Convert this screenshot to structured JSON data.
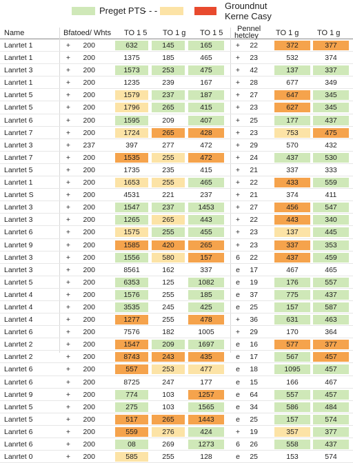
{
  "colors": {
    "green": "#cfe8b8",
    "yellow": "#fce3a6",
    "orange": "#f5a34c",
    "red": "#e84a2e",
    "white": "#ffffff"
  },
  "legend": {
    "label1": "Preget PTS",
    "dashes": "- - -",
    "label2_line1": "Groundnut",
    "label2_line2": "Kerne Casy"
  },
  "headers": {
    "name": "Name",
    "col2": "Bfatoed/ Whts",
    "col3": "TO 1 5",
    "col4": "TO 1 g",
    "col5": "TO 1 5",
    "col6_line1": "Pennel",
    "col6_line2": "hetcley",
    "col7": "TO 1 g",
    "col8": "TO 1 g"
  },
  "rows": [
    {
      "name": "Lanrtet 1",
      "a1": "+",
      "n1": "200",
      "v1": "632",
      "c1": "green",
      "v2": "145",
      "c2": "green",
      "v3": "165",
      "c3": "green",
      "a2": "+",
      "n2": "22",
      "v4": "372",
      "c4": "orange",
      "v5": "377",
      "c5": "orange"
    },
    {
      "name": "Lanrtet 1",
      "a1": "+",
      "n1": "200",
      "v1": "1375",
      "c1": "white",
      "v2": "185",
      "c2": "white",
      "v3": "465",
      "c3": "white",
      "a2": "+",
      "n2": "23",
      "v4": "532",
      "c4": "white",
      "v5": "374",
      "c5": "white"
    },
    {
      "name": "Lanrtet 3",
      "a1": "+",
      "n1": "200",
      "v1": "1573",
      "c1": "green",
      "v2": "253",
      "c2": "green",
      "v3": "475",
      "c3": "green",
      "a2": "+",
      "n2": "42",
      "v4": "137",
      "c4": "green",
      "v5": "337",
      "c5": "green"
    },
    {
      "name": "Lanrtet 1",
      "a1": "+",
      "n1": "200",
      "v1": "1235",
      "c1": "white",
      "v2": "239",
      "c2": "white",
      "v3": "167",
      "c3": "white",
      "a2": "+",
      "n2": "28",
      "v4": "677",
      "c4": "white",
      "v5": "349",
      "c5": "white"
    },
    {
      "name": "Lanrtet 5",
      "a1": "+",
      "n1": "200",
      "v1": "1579",
      "c1": "yellow",
      "v2": "237",
      "c2": "green",
      "v3": "187",
      "c3": "green",
      "a2": "+",
      "n2": "27",
      "v4": "647",
      "c4": "orange",
      "v5": "345",
      "c5": "green"
    },
    {
      "name": "Lanrtet 5",
      "a1": "+",
      "n1": "200",
      "v1": "1796",
      "c1": "yellow",
      "v2": "265",
      "c2": "green",
      "v3": "415",
      "c3": "green",
      "a2": "+",
      "n2": "23",
      "v4": "627",
      "c4": "orange",
      "v5": "345",
      "c5": "green"
    },
    {
      "name": "Lanrtet 6",
      "a1": "+",
      "n1": "200",
      "v1": "1595",
      "c1": "green",
      "v2": "209",
      "c2": "white",
      "v3": "407",
      "c3": "green",
      "a2": "+",
      "n2": "25",
      "v4": "177",
      "c4": "green",
      "v5": "437",
      "c5": "green"
    },
    {
      "name": "Lanrtet 7",
      "a1": "+",
      "n1": "200",
      "v1": "1724",
      "c1": "yellow",
      "v2": "265",
      "c2": "orange",
      "v3": "428",
      "c3": "orange",
      "a2": "+",
      "n2": "23",
      "v4": "753",
      "c4": "yellow",
      "v5": "475",
      "c5": "orange"
    },
    {
      "name": "Lanrtet 3",
      "a1": "+",
      "n1": "237",
      "v1": "397",
      "c1": "white",
      "v2": "277",
      "c2": "white",
      "v3": "472",
      "c3": "white",
      "a2": "+",
      "n2": "29",
      "v4": "570",
      "c4": "white",
      "v5": "432",
      "c5": "white"
    },
    {
      "name": "Lanrtet 7",
      "a1": "+",
      "n1": "200",
      "v1": "1535",
      "c1": "orange",
      "v2": "255",
      "c2": "yellow",
      "v3": "472",
      "c3": "orange",
      "a2": "+",
      "n2": "24",
      "v4": "437",
      "c4": "green",
      "v5": "530",
      "c5": "green"
    },
    {
      "name": "Lanrtet 5",
      "a1": "+",
      "n1": "200",
      "v1": "1735",
      "c1": "white",
      "v2": "235",
      "c2": "white",
      "v3": "415",
      "c3": "white",
      "a2": "+",
      "n2": "21",
      "v4": "337",
      "c4": "white",
      "v5": "333",
      "c5": "white"
    },
    {
      "name": "Lanrtet 1",
      "a1": "+",
      "n1": "200",
      "v1": "1653",
      "c1": "yellow",
      "v2": "255",
      "c2": "yellow",
      "v3": "465",
      "c3": "green",
      "a2": "+",
      "n2": "22",
      "v4": "433",
      "c4": "orange",
      "v5": "559",
      "c5": "green"
    },
    {
      "name": "Lanrtet S",
      "a1": "+",
      "n1": "200",
      "v1": "4531",
      "c1": "white",
      "v2": "221",
      "c2": "white",
      "v3": "237",
      "c3": "white",
      "a2": "+",
      "n2": "21",
      "v4": "374",
      "c4": "white",
      "v5": "411",
      "c5": "white"
    },
    {
      "name": "Lanrtet 3",
      "a1": "+",
      "n1": "200",
      "v1": "1547",
      "c1": "green",
      "v2": "237",
      "c2": "green",
      "v3": "1453",
      "c3": "green",
      "a2": "+",
      "n2": "27",
      "v4": "456",
      "c4": "orange",
      "v5": "547",
      "c5": "green"
    },
    {
      "name": "Lanrtet 3",
      "a1": "+",
      "n1": "200",
      "v1": "1265",
      "c1": "green",
      "v2": "265",
      "c2": "yellow",
      "v3": "443",
      "c3": "green",
      "a2": "+",
      "n2": "22",
      "v4": "443",
      "c4": "orange",
      "v5": "340",
      "c5": "green"
    },
    {
      "name": "Lanrtet 6",
      "a1": "+",
      "n1": "200",
      "v1": "1575",
      "c1": "yellow",
      "v2": "255",
      "c2": "green",
      "v3": "455",
      "c3": "green",
      "a2": "+",
      "n2": "23",
      "v4": "137",
      "c4": "yellow",
      "v5": "445",
      "c5": "green"
    },
    {
      "name": "Lanrtet 9",
      "a1": "+",
      "n1": "200",
      "v1": "1585",
      "c1": "orange",
      "v2": "420",
      "c2": "orange",
      "v3": "265",
      "c3": "orange",
      "a2": "+",
      "n2": "23",
      "v4": "337",
      "c4": "orange",
      "v5": "353",
      "c5": "green"
    },
    {
      "name": "Lanrtet 3",
      "a1": "+",
      "n1": "200",
      "v1": "1556",
      "c1": "green",
      "v2": "580",
      "c2": "yellow",
      "v3": "157",
      "c3": "orange",
      "a2": "6",
      "n2": "22",
      "v4": "437",
      "c4": "orange",
      "v5": "459",
      "c5": "green"
    },
    {
      "name": "Lanrtet 3",
      "a1": "+",
      "n1": "200",
      "v1": "8561",
      "c1": "white",
      "v2": "162",
      "c2": "white",
      "v3": "337",
      "c3": "white",
      "a2": "e",
      "n2": "17",
      "v4": "467",
      "c4": "white",
      "v5": "465",
      "c5": "white"
    },
    {
      "name": "Lanrtet 5",
      "a1": "+",
      "n1": "200",
      "v1": "6353",
      "c1": "green",
      "v2": "125",
      "c2": "white",
      "v3": "1082",
      "c3": "green",
      "a2": "e",
      "n2": "19",
      "v4": "176",
      "c4": "green",
      "v5": "557",
      "c5": "green"
    },
    {
      "name": "Lanrtet 4",
      "a1": "+",
      "n1": "200",
      "v1": "1576",
      "c1": "green",
      "v2": "255",
      "c2": "white",
      "v3": "185",
      "c3": "green",
      "a2": "e",
      "n2": "37",
      "v4": "775",
      "c4": "green",
      "v5": "437",
      "c5": "green"
    },
    {
      "name": "Lanrtet 4",
      "a1": "+",
      "n1": "200",
      "v1": "3535",
      "c1": "green",
      "v2": "245",
      "c2": "white",
      "v3": "425",
      "c3": "green",
      "a2": "e",
      "n2": "25",
      "v4": "157",
      "c4": "green",
      "v5": "587",
      "c5": "green"
    },
    {
      "name": "Lanrtet 4",
      "a1": "+",
      "n1": "200",
      "v1": "1277",
      "c1": "orange",
      "v2": "255",
      "c2": "white",
      "v3": "478",
      "c3": "orange",
      "a2": "+",
      "n2": "36",
      "v4": "631",
      "c4": "green",
      "v5": "463",
      "c5": "green"
    },
    {
      "name": "Lanrtet 6",
      "a1": "+",
      "n1": "200",
      "v1": "7576",
      "c1": "white",
      "v2": "182",
      "c2": "white",
      "v3": "1005",
      "c3": "white",
      "a2": "+",
      "n2": "29",
      "v4": "170",
      "c4": "white",
      "v5": "364",
      "c5": "white"
    },
    {
      "name": "Lanrtet 2",
      "a1": "+",
      "n1": "200",
      "v1": "1547",
      "c1": "orange",
      "v2": "209",
      "c2": "green",
      "v3": "1697",
      "c3": "green",
      "a2": "e",
      "n2": "16",
      "v4": "577",
      "c4": "orange",
      "v5": "377",
      "c5": "orange"
    },
    {
      "name": "Lanrtet 2",
      "a1": "+",
      "n1": "200",
      "v1": "8743",
      "c1": "orange",
      "v2": "243",
      "c2": "orange",
      "v3": "435",
      "c3": "orange",
      "a2": "e",
      "n2": "17",
      "v4": "567",
      "c4": "green",
      "v5": "457",
      "c5": "orange"
    },
    {
      "name": "Lanrtet 6",
      "a1": "+",
      "n1": "200",
      "v1": "557",
      "c1": "orange",
      "v2": "253",
      "c2": "yellow",
      "v3": "477",
      "c3": "yellow",
      "a2": "e",
      "n2": "18",
      "v4": "1095",
      "c4": "green",
      "v5": "457",
      "c5": "green"
    },
    {
      "name": "Lanrtet 6",
      "a1": "+",
      "n1": "200",
      "v1": "8725",
      "c1": "white",
      "v2": "247",
      "c2": "white",
      "v3": "177",
      "c3": "white",
      "a2": "e",
      "n2": "15",
      "v4": "166",
      "c4": "white",
      "v5": "467",
      "c5": "white"
    },
    {
      "name": "Lanrtet 9",
      "a1": "+",
      "n1": "200",
      "v1": "774",
      "c1": "green",
      "v2": "103",
      "c2": "white",
      "v3": "1257",
      "c3": "orange",
      "a2": "e",
      "n2": "64",
      "v4": "557",
      "c4": "green",
      "v5": "457",
      "c5": "green"
    },
    {
      "name": "Lanrtet 5",
      "a1": "+",
      "n1": "200",
      "v1": "275",
      "c1": "green",
      "v2": "103",
      "c2": "white",
      "v3": "1565",
      "c3": "green",
      "a2": "e",
      "n2": "34",
      "v4": "586",
      "c4": "green",
      "v5": "484",
      "c5": "green"
    },
    {
      "name": "Lanrtet 5",
      "a1": "+",
      "n1": "200",
      "v1": "517",
      "c1": "orange",
      "v2": "265",
      "c2": "orange",
      "v3": "1443",
      "c3": "orange",
      "a2": "e",
      "n2": "25",
      "v4": "157",
      "c4": "green",
      "v5": "574",
      "c5": "green"
    },
    {
      "name": "Lanrtet 6",
      "a1": "+",
      "n1": "200",
      "v1": "559",
      "c1": "orange",
      "v2": "276",
      "c2": "yellow",
      "v3": "424",
      "c3": "green",
      "a2": "+",
      "n2": "19",
      "v4": "357",
      "c4": "yellow",
      "v5": "377",
      "c5": "green"
    },
    {
      "name": "Lanrtet 6",
      "a1": "+",
      "n1": "200",
      "v1": "08",
      "c1": "green",
      "v2": "269",
      "c2": "white",
      "v3": "1273",
      "c3": "green",
      "a2": "6",
      "n2": "26",
      "v4": "558",
      "c4": "green",
      "v5": "437",
      "c5": "green"
    },
    {
      "name": "Lanrtet 0",
      "a1": "+",
      "n1": "200",
      "v1": "585",
      "c1": "yellow",
      "v2": "255",
      "c2": "white",
      "v3": "128",
      "c3": "white",
      "a2": "e",
      "n2": "25",
      "v4": "153",
      "c4": "white",
      "v5": "574",
      "c5": "white"
    }
  ]
}
